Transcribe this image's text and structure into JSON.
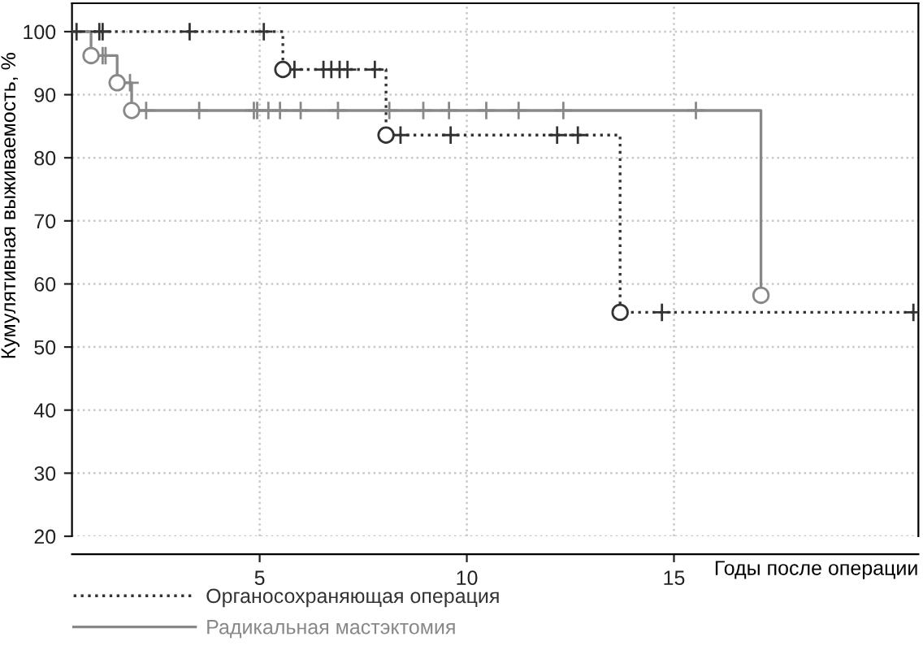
{
  "chart_data": {
    "type": "step",
    "xlabel": "Годы после операции",
    "ylabel": "Кумулятивная выживаемость, %",
    "xlim": [
      0.47,
      20.9
    ],
    "xticks": [
      5,
      10,
      15
    ],
    "ylim": [
      20,
      104.5
    ],
    "yticks": [
      20,
      30,
      40,
      50,
      60,
      70,
      80,
      90,
      100
    ],
    "grid": true,
    "legend": "bottom left",
    "series": [
      {
        "name": "Органосохраняющая операция",
        "color": "#333333",
        "line_style": "dotted",
        "marker": "none",
        "x": [
          0.47,
          5.56,
          8.05,
          13.7,
          20.9
        ],
        "values": [
          100,
          94,
          83.6,
          55.5,
          55.5
        ]
      },
      {
        "name": "Радикальная мастэктомия",
        "color": "#888888",
        "line_style": "solid",
        "marker": "none",
        "x": [
          0.47,
          0.93,
          1.56,
          1.91,
          17.1
        ],
        "values": [
          100,
          96.2,
          91.9,
          87.5,
          58.2
        ]
      },
      {
        "type": "scatter",
        "color": "#333333",
        "marker": "cross",
        "x": [
          0.58,
          1.13,
          1.21,
          3.31,
          5.1,
          5.84,
          6.54,
          6.73,
          6.93,
          7.12,
          7.78,
          8.4,
          9.61,
          12.18,
          12.68,
          14.71,
          20.78
        ],
        "values": [
          100,
          100,
          100,
          100,
          100,
          94,
          94,
          94,
          94,
          94,
          94,
          83.6,
          83.6,
          83.6,
          83.6,
          55.5,
          55.5
        ]
      },
      {
        "type": "scatter",
        "color": "#333333",
        "marker": "circle",
        "x": [
          5.56,
          8.05,
          13.7
        ],
        "values": [
          94,
          83.6,
          55.5
        ]
      },
      {
        "type": "scatter",
        "color": "#888888",
        "marker": "cross",
        "x": [
          1.21,
          1.28,
          1.87,
          2.26,
          3.54,
          4.86,
          4.94,
          5.21,
          5.49,
          5.99,
          6.89,
          8.13,
          8.95,
          9.57,
          10.47,
          11.25,
          12.33,
          15.53
        ],
        "values": [
          96.2,
          96.2,
          91.9,
          87.5,
          87.5,
          87.5,
          87.5,
          87.5,
          87.5,
          87.5,
          87.5,
          87.5,
          87.5,
          87.5,
          87.5,
          87.5,
          87.5,
          87.5
        ]
      },
      {
        "type": "scatter",
        "color": "#888888",
        "marker": "circle",
        "x": [
          0.93,
          1.56,
          1.91,
          17.1
        ],
        "values": [
          96.2,
          91.9,
          87.5,
          58.2
        ]
      }
    ]
  }
}
